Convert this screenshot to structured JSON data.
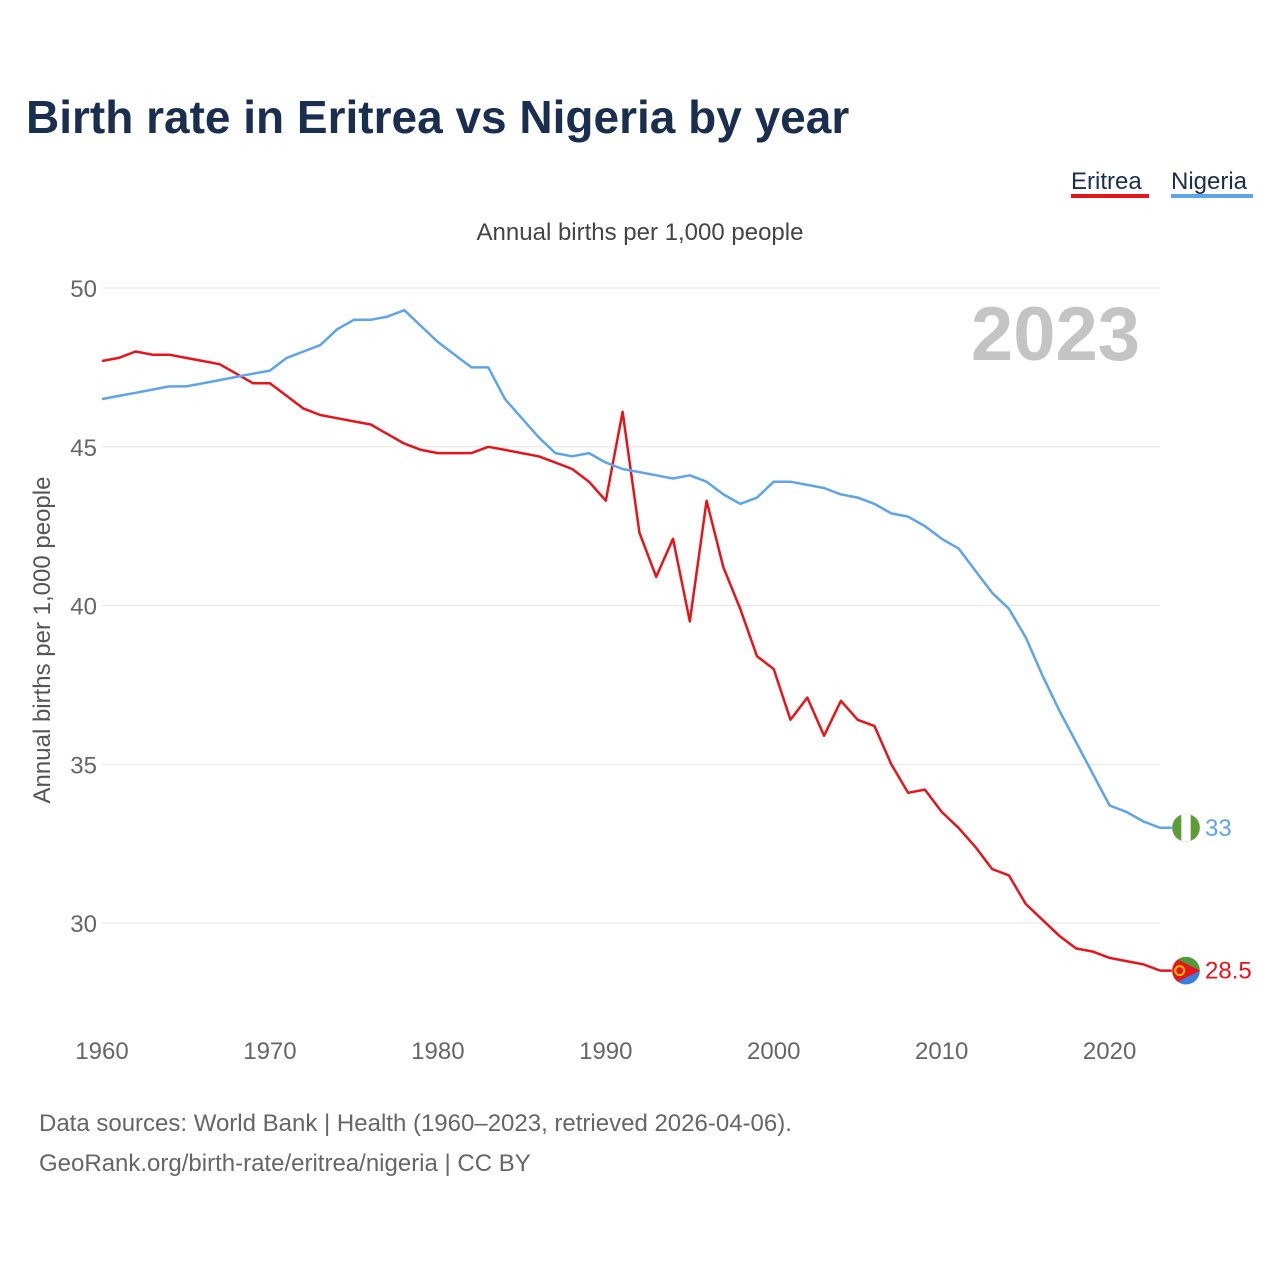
{
  "chart_data": {
    "type": "line",
    "title": "Birth rate in Eritrea vs Nigeria by year",
    "subtitle": "Annual births per 1,000 people",
    "ylabel": "Annual births per 1,000 people",
    "xlabel": "",
    "year_badge": "2023",
    "xlim": [
      1960,
      2023
    ],
    "ylim": [
      27.5,
      50.5
    ],
    "x_ticks": [
      1960,
      1970,
      1980,
      1990,
      2000,
      2010,
      2020
    ],
    "y_ticks": [
      30,
      35,
      40,
      45,
      50
    ],
    "grid": true,
    "legend_position": "top-right",
    "x": [
      1960,
      1961,
      1962,
      1963,
      1964,
      1965,
      1966,
      1967,
      1968,
      1969,
      1970,
      1971,
      1972,
      1973,
      1974,
      1975,
      1976,
      1977,
      1978,
      1979,
      1980,
      1981,
      1982,
      1983,
      1984,
      1985,
      1986,
      1987,
      1988,
      1989,
      1990,
      1991,
      1992,
      1993,
      1994,
      1995,
      1996,
      1997,
      1998,
      1999,
      2000,
      2001,
      2002,
      2003,
      2004,
      2005,
      2006,
      2007,
      2008,
      2009,
      2010,
      2011,
      2012,
      2013,
      2014,
      2015,
      2016,
      2017,
      2018,
      2019,
      2020,
      2021,
      2022,
      2023
    ],
    "series": [
      {
        "name": "Eritrea",
        "color": "#e8141b",
        "end_label": "28.5",
        "flag": "eritrea-flag",
        "values": [
          47.7,
          47.8,
          48.0,
          47.9,
          47.9,
          47.8,
          47.7,
          47.6,
          47.3,
          47.0,
          47.0,
          46.6,
          46.2,
          46.0,
          45.9,
          45.8,
          45.7,
          45.4,
          45.1,
          44.9,
          44.8,
          44.8,
          44.8,
          45.0,
          44.9,
          44.8,
          44.7,
          44.5,
          44.3,
          43.9,
          43.3,
          46.1,
          42.3,
          40.9,
          42.1,
          39.5,
          43.3,
          41.2,
          39.9,
          38.4,
          38.0,
          36.4,
          37.1,
          35.9,
          37.0,
          36.4,
          36.2,
          35.0,
          34.1,
          34.2,
          33.5,
          33.0,
          32.4,
          31.7,
          31.5,
          30.6,
          30.1,
          29.6,
          29.2,
          29.1,
          28.9,
          28.8,
          28.7,
          28.5
        ]
      },
      {
        "name": "Nigeria",
        "color": "#5da5e8",
        "end_label": "33",
        "flag": "nigeria-flag",
        "values": [
          46.5,
          46.6,
          46.7,
          46.8,
          46.9,
          46.9,
          47.0,
          47.1,
          47.2,
          47.3,
          47.4,
          47.8,
          48.0,
          48.2,
          48.7,
          49.0,
          49.0,
          49.1,
          49.3,
          48.8,
          48.3,
          47.9,
          47.5,
          47.5,
          46.5,
          45.9,
          45.3,
          44.8,
          44.7,
          44.8,
          44.5,
          44.3,
          44.2,
          44.1,
          44.0,
          44.1,
          43.9,
          43.5,
          43.2,
          43.4,
          43.9,
          43.9,
          43.8,
          43.7,
          43.5,
          43.4,
          43.2,
          42.9,
          42.8,
          42.5,
          42.1,
          41.8,
          41.1,
          40.4,
          39.9,
          39.0,
          37.8,
          36.7,
          35.7,
          34.7,
          33.7,
          33.5,
          33.2,
          33.0
        ]
      }
    ]
  },
  "footer": {
    "line1": "Data sources: World Bank | Health (1960–2023, retrieved 2026-04-06).",
    "line2": "GeoRank.org/birth-rate/eritrea/nigeria | CC BY"
  },
  "colors": {
    "title": "#1a2e4f",
    "axis_text": "#666666",
    "grid": "#e6e6e6",
    "badge": "#c4c4c4",
    "subtitle": "#444444"
  }
}
